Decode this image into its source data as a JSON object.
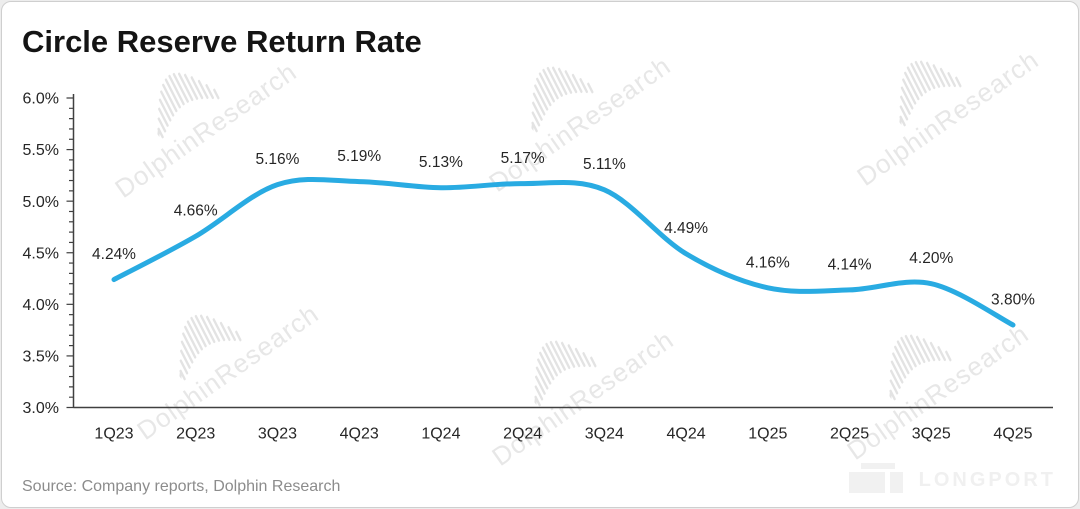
{
  "page": {
    "title": "Circle Reserve Return Rate",
    "source": "Source: Company reports, Dolphin Research",
    "watermark": "DolphinResearch",
    "brand": "LONGPORT"
  },
  "chart_data": {
    "type": "line",
    "title": "Circle Reserve Return Rate",
    "categories": [
      "1Q23",
      "2Q23",
      "3Q23",
      "4Q23",
      "1Q24",
      "2Q24",
      "3Q24",
      "4Q24",
      "1Q25",
      "2Q25",
      "3Q25",
      "4Q25"
    ],
    "values": [
      4.24,
      4.66,
      5.16,
      5.19,
      5.13,
      5.17,
      5.11,
      4.49,
      4.16,
      4.14,
      4.2,
      3.8
    ],
    "data_labels": [
      "4.24%",
      "4.66%",
      "5.16%",
      "5.19%",
      "5.13%",
      "5.17%",
      "5.11%",
      "4.49%",
      "4.16%",
      "4.14%",
      "4.20%",
      "3.80%"
    ],
    "y_ticks": [
      "6.0%",
      "5.5%",
      "5.0%",
      "4.5%",
      "4.0%",
      "3.5%",
      "3.0%"
    ],
    "ylim": [
      3.0,
      6.0
    ],
    "y_major_step": 0.5,
    "y_minor_step": 0.1,
    "grid": false,
    "legend_position": "none",
    "line_color": "#29abe2",
    "axis_color": "#404040",
    "label_color": "#262626"
  }
}
